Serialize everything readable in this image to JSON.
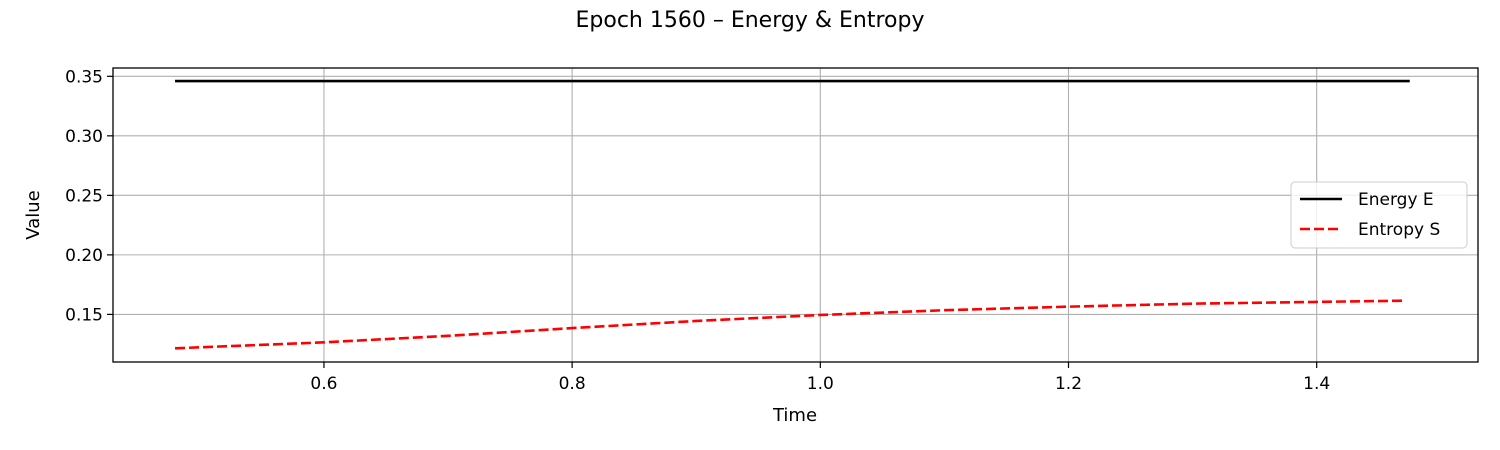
{
  "chart_data": {
    "type": "line",
    "title": "Epoch 1560 – Energy & Entropy",
    "xlabel": "Time",
    "ylabel": "Value",
    "xlim": [
      0.43,
      1.53
    ],
    "ylim": [
      0.11,
      0.357
    ],
    "xticks": [
      0.6,
      0.8,
      1.0,
      1.2,
      1.4
    ],
    "xtick_labels": [
      "0.6",
      "0.8",
      "1.0",
      "1.2",
      "1.4"
    ],
    "yticks": [
      0.15,
      0.2,
      0.25,
      0.3,
      0.35
    ],
    "ytick_labels": [
      "0.15",
      "0.20",
      "0.25",
      "0.30",
      "0.35"
    ],
    "grid": true,
    "legend_position": "center-right",
    "series": [
      {
        "name": "Energy E",
        "color": "#000000",
        "style": "solid",
        "x": [
          0.48,
          1.475
        ],
        "y": [
          0.346,
          0.346
        ]
      },
      {
        "name": "Entropy S",
        "color": "#ff0000",
        "style": "dashed",
        "x": [
          0.48,
          0.6,
          0.7,
          0.8,
          0.9,
          1.0,
          1.1,
          1.2,
          1.3,
          1.4,
          1.47
        ],
        "y": [
          0.1215,
          0.1265,
          0.132,
          0.1385,
          0.1445,
          0.1495,
          0.1535,
          0.1565,
          0.159,
          0.1605,
          0.1615
        ]
      }
    ]
  }
}
